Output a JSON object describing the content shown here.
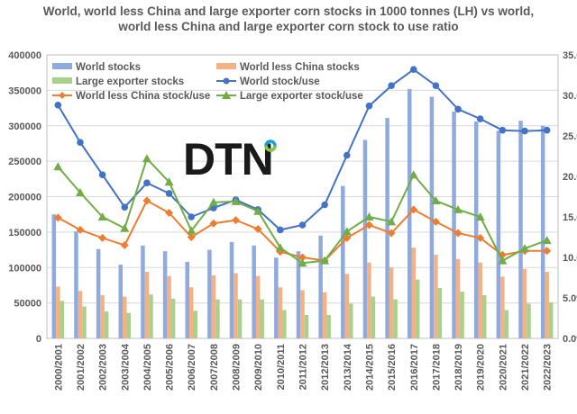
{
  "chart_data": {
    "type": "bar+line",
    "title": "World, world less China and large exporter corn stocks in 1000 tonnes (LH) vs world, world less China and large exporter corn stock to use ratio",
    "title_lines": [
      "World, world less China and large exporter corn stocks in 1000 tonnes (LH) vs world,",
      "world less China and large exporter corn stock to use ratio"
    ],
    "categories": [
      "2000/2001",
      "2001/2002",
      "2002/2003",
      "2003/2004",
      "2004/2005",
      "2005/2006",
      "2006/2007",
      "2007/2008",
      "2008/2009",
      "2009/2010",
      "2010/2011",
      "2011/2012",
      "2012/2013",
      "2013/2014",
      "2014/2015",
      "2015/2016",
      "2016/2017",
      "2017/2018",
      "2018/2019",
      "2019/2020",
      "2020/2021",
      "2021/2022",
      "2022/2023"
    ],
    "left_axis": {
      "ylim": [
        0,
        400000
      ],
      "ticks": [
        "0",
        "50000",
        "100000",
        "150000",
        "200000",
        "250000",
        "300000",
        "350000",
        "400000"
      ]
    },
    "right_axis": {
      "ylim": [
        0,
        35
      ],
      "ticks": [
        "0.0%",
        "5.0%",
        "10.0%",
        "15.0%",
        "20.0%",
        "25.0%",
        "30.0%",
        "35.0%"
      ]
    },
    "bar_series": [
      {
        "name": "World stocks",
        "color": "#8faadc",
        "values": [
          175000,
          151000,
          126000,
          104000,
          131000,
          123000,
          108000,
          125000,
          136000,
          131000,
          114000,
          123000,
          145000,
          215000,
          280000,
          311000,
          352000,
          341000,
          320000,
          306000,
          293000,
          307000,
          300000
        ]
      },
      {
        "name": "World less China stocks",
        "color": "#f4b183",
        "values": [
          73000,
          67000,
          61000,
          59000,
          94000,
          88000,
          72000,
          89000,
          92000,
          88000,
          72000,
          68000,
          65000,
          91000,
          107000,
          100000,
          128000,
          118000,
          112000,
          107000,
          87000,
          98000,
          94000
        ]
      },
      {
        "name": "Large exporter stocks",
        "color": "#a9d18e",
        "values": [
          53000,
          45000,
          38000,
          36000,
          62000,
          56000,
          39000,
          55000,
          55000,
          55000,
          40000,
          33000,
          33000,
          49000,
          59000,
          55000,
          83000,
          71000,
          66000,
          61000,
          40000,
          49000,
          51000
        ]
      }
    ],
    "line_series": [
      {
        "name": "World stock/use",
        "color": "#4472c4",
        "marker": "circle",
        "values": [
          28.8,
          24.2,
          20.2,
          16.2,
          19.2,
          17.9,
          15.0,
          16.1,
          17.1,
          15.9,
          13.4,
          14.0,
          16.5,
          22.6,
          28.7,
          31.2,
          33.2,
          31.2,
          28.3,
          27.1,
          25.7,
          25.6,
          25.7
        ]
      },
      {
        "name": "World less China stock/use",
        "color": "#ed7d31",
        "marker": "diamond",
        "values": [
          14.9,
          13.4,
          12.4,
          11.5,
          17.0,
          15.5,
          12.5,
          14.2,
          14.6,
          13.5,
          10.7,
          10.0,
          9.6,
          12.4,
          14.0,
          13.0,
          15.9,
          14.4,
          13.0,
          12.4,
          10.3,
          10.8,
          10.8
        ]
      },
      {
        "name": "Large exporter stock/use",
        "color": "#70ad47",
        "marker": "triangle",
        "values": [
          21.2,
          18.0,
          15.0,
          13.6,
          22.2,
          19.3,
          13.3,
          16.8,
          16.9,
          15.7,
          11.2,
          9.3,
          9.6,
          13.2,
          15.0,
          14.4,
          20.2,
          17.0,
          15.9,
          15.0,
          9.6,
          11.1,
          12.1
        ]
      }
    ],
    "legend_order": [
      "World stocks",
      "World less China stocks",
      "Large exporter stocks",
      "World stock/use",
      "World less China stock/use",
      "Large exporter stock/use"
    ],
    "legend_position": "top",
    "grid": true
  },
  "logo": {
    "text": "DTN"
  }
}
